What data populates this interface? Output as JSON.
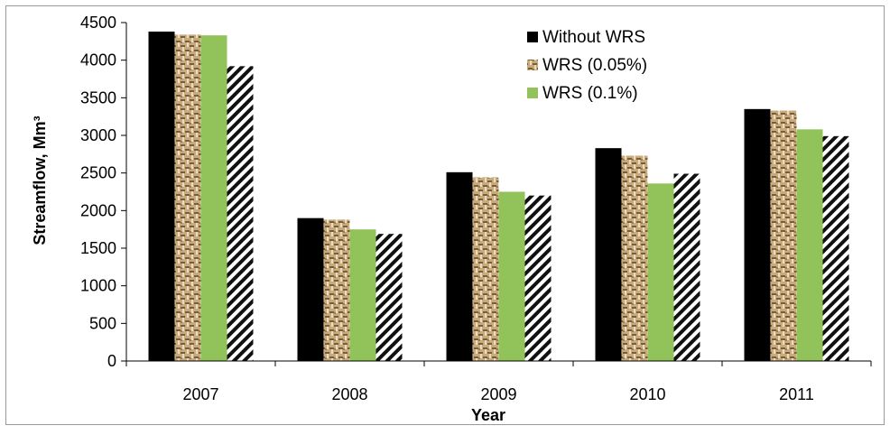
{
  "chart_data": {
    "type": "bar",
    "categories": [
      "2007",
      "2008",
      "2009",
      "2010",
      "2011"
    ],
    "series": [
      {
        "name": "Without WRS",
        "values": [
          4380,
          1900,
          2510,
          2830,
          3350
        ],
        "color": "#000000",
        "pattern": "solid"
      },
      {
        "name": "WRS (0.05%)",
        "values": [
          4340,
          1880,
          2440,
          2730,
          3330
        ],
        "color": "#b89b6e",
        "pattern": "woven"
      },
      {
        "name": "WRS (0.1%)",
        "values": [
          4330,
          1750,
          2250,
          2360,
          3080
        ],
        "color": "#92c35a",
        "pattern": "solid"
      },
      {
        "name": "",
        "values": [
          3920,
          1690,
          2200,
          2490,
          2990
        ],
        "color": "#000000",
        "pattern": "diagonal-stripes"
      }
    ],
    "xlabel": "Year",
    "ylabel": "Streamflow, Mm³",
    "ylim": [
      0,
      4500
    ],
    "yticks": [
      "0",
      "500",
      "1000",
      "1500",
      "2000",
      "2500",
      "3000",
      "3500",
      "4000",
      "4500"
    ],
    "grid": false,
    "legend": "top-right"
  }
}
